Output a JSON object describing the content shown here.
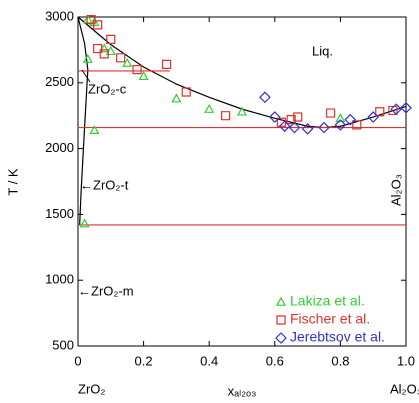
{
  "chart_data": {
    "type": "scatter",
    "ylabel": "T / K",
    "xlabel": "xₐₗ₂ₒ₃",
    "xlim": [
      0,
      1
    ],
    "ylim": [
      500,
      3000
    ],
    "xticks": [
      0,
      0.2,
      0.4,
      0.6,
      0.8,
      {
        "value": 1,
        "label": "1.0"
      }
    ],
    "yticks": [
      500,
      1000,
      1500,
      2000,
      2500,
      3000
    ],
    "grid": false,
    "legend": "lower right",
    "annotations": [
      "Liq.",
      "ZrO₂-c",
      "←ZrO₂-t",
      "←ZrO₂-m",
      "Al₂O₃",
      "ZrO₂",
      "Al₂O₃"
    ],
    "curves": [
      {
        "color": "#000000",
        "x": [
          0,
          0.1,
          0.2,
          0.3,
          0.4,
          0.5,
          0.6,
          0.7,
          0.75,
          0.8,
          0.9,
          1.0
        ],
        "y": [
          3000,
          2790,
          2620,
          2490,
          2390,
          2300,
          2230,
          2170,
          2160,
          2170,
          2240,
          2320
        ]
      },
      {
        "color": "#000000",
        "x": [
          0,
          0.02,
          0.03
        ],
        "y": [
          3000,
          2800,
          2600
        ]
      },
      {
        "color": "#000000",
        "x": [
          0.03,
          0.02,
          0.01,
          0.005
        ],
        "y": [
          2600,
          2160,
          1700,
          1420
        ]
      },
      {
        "color": "#e03030",
        "x": [
          0,
          0.28
        ],
        "y": [
          2590,
          2590
        ]
      },
      {
        "color": "#e03030",
        "x": [
          0,
          1
        ],
        "y": [
          2160,
          2160
        ]
      },
      {
        "color": "#e03030",
        "x": [
          0,
          1
        ],
        "y": [
          1420,
          1420
        ]
      }
    ],
    "series": [
      {
        "name": "Lakiza et al.",
        "color": "#33cc33",
        "marker": "triangle",
        "x": [
          0.02,
          0.05,
          0.03,
          0.05,
          0.03,
          0.08,
          0.1,
          0.15,
          0.2,
          0.3,
          0.4,
          0.5,
          0.8
        ],
        "values": [
          1430,
          2140,
          2680,
          2960,
          2980,
          2760,
          2740,
          2650,
          2550,
          2380,
          2300,
          2280,
          2230
        ]
      },
      {
        "name": "Fischer et al.",
        "color": "#e03030",
        "marker": "square",
        "x": [
          0.04,
          0.06,
          0.06,
          0.1,
          0.08,
          0.13,
          0.18,
          0.27,
          0.33,
          0.45,
          0.62,
          0.65,
          0.67,
          0.77,
          0.85,
          0.92,
          0.96
        ],
        "values": [
          2980,
          2940,
          2760,
          2830,
          2720,
          2690,
          2600,
          2640,
          2430,
          2250,
          2200,
          2220,
          2240,
          2270,
          2180,
          2280,
          2290
        ]
      },
      {
        "name": "Jerebtsov et al.",
        "color": "#3333cc",
        "marker": "diamond",
        "x": [
          0.57,
          0.6,
          0.63,
          0.66,
          0.7,
          0.75,
          0.8,
          0.83,
          0.9,
          0.97,
          1.0
        ],
        "values": [
          2390,
          2240,
          2170,
          2160,
          2150,
          2160,
          2180,
          2220,
          2240,
          2300,
          2310
        ]
      }
    ]
  }
}
